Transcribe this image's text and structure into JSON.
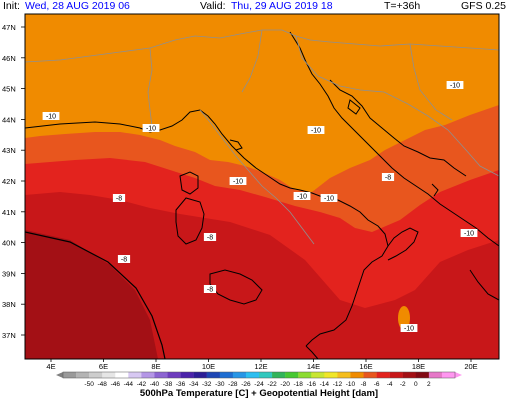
{
  "header": {
    "init_label": "Init:",
    "init_value": "Wed, 28 AUG 2019  06",
    "valid_label": "Valid:",
    "valid_value": "Thu, 29 AUG 2019  18",
    "lead": "T=+36h",
    "model": "GFS 0.25"
  },
  "map": {
    "lat_labels": [
      "47N",
      "46N",
      "45N",
      "44N",
      "43N",
      "42N",
      "41N",
      "40N",
      "39N",
      "38N",
      "37N"
    ],
    "lon_labels": [
      "4E",
      "6E",
      "8E",
      "10E",
      "12E",
      "14E",
      "16E",
      "18E",
      "20E"
    ],
    "temperature_labels": [
      "-10",
      "-10",
      "-10",
      "-10",
      "-10",
      "-10",
      "-10",
      "-8",
      "-8",
      "-8",
      "-8",
      "-8",
      "-10",
      "-10"
    ],
    "colors": {
      "lt_minus10": "#f08b00",
      "m10_m8": "#e8561e",
      "m8_m6": "#e3231e",
      "m6_m4": "#c81719",
      "m4_m2": "#a31015",
      "coast": "#000000",
      "border": "#8f8f8f"
    }
  },
  "colorbar": {
    "ticks": [
      "-50",
      "-48",
      "-46",
      "-44",
      "-42",
      "-40",
      "-38",
      "-36",
      "-34",
      "-32",
      "-30",
      "-28",
      "-26",
      "-24",
      "-22",
      "-20",
      "-18",
      "-16",
      "-14",
      "-12",
      "-10",
      "-8",
      "-6",
      "-4",
      "-2",
      "0",
      "2"
    ],
    "colors": [
      "#9a9a9a",
      "#b4b4b4",
      "#cdcdcd",
      "#e6e6e6",
      "#ffffff",
      "#d7c8f2",
      "#b496e6",
      "#8c64d2",
      "#6e3cbe",
      "#4b23aa",
      "#2d1e96",
      "#1e46b4",
      "#1e6ed2",
      "#2896e6",
      "#2dbef0",
      "#32c8be",
      "#32b45a",
      "#46c832",
      "#8cdc32",
      "#c8e632",
      "#f0e628",
      "#f5be1e",
      "#f08b00",
      "#e8561e",
      "#e3231e",
      "#c81719",
      "#a31015",
      "#820a14",
      "#e678c8",
      "#ff96f0"
    ],
    "title": "500hPa Temperature [C] + Geopotential Height [dam]"
  }
}
